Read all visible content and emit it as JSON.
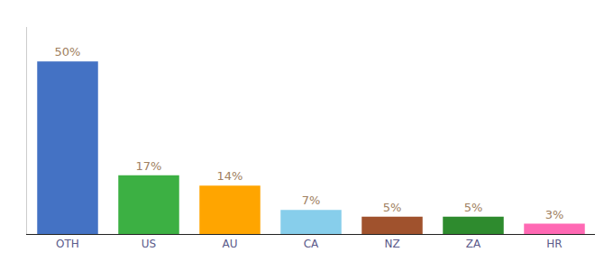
{
  "chart_data": {
    "type": "bar",
    "categories": [
      "OTH",
      "US",
      "AU",
      "CA",
      "NZ",
      "ZA",
      "HR"
    ],
    "values": [
      50,
      17,
      14,
      7,
      5,
      5,
      3
    ],
    "value_labels": [
      "50%",
      "17%",
      "14%",
      "7%",
      "5%",
      "5%",
      "3%"
    ],
    "colors": [
      "#4472C4",
      "#3CB043",
      "#FFA500",
      "#87CEEB",
      "#A0522D",
      "#2E8B2E",
      "#FF69B4"
    ],
    "ylim": [
      0,
      60
    ],
    "grid": false,
    "data_labels": true,
    "tick_labels": "x"
  }
}
